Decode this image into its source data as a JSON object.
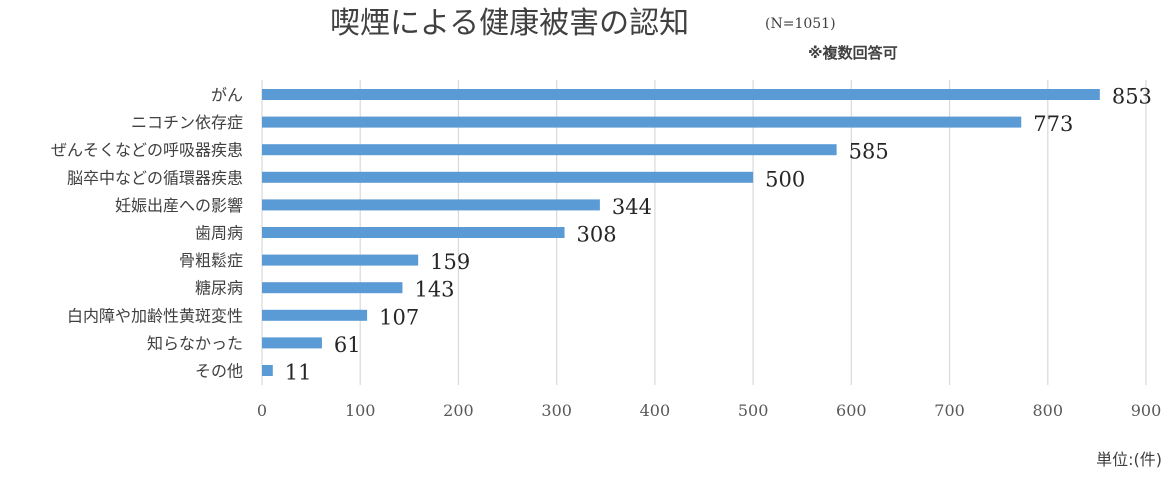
{
  "chart_data": {
    "type": "bar",
    "orientation": "horizontal",
    "title": "喫煙による健康被害の認知",
    "subtitle": "(N=1051)",
    "note": "※複数回答可",
    "unit_label": "単位:(件)",
    "categories": [
      "がん",
      "ニコチン依存症",
      "ぜんそくなどの呼吸器疾患",
      "脳卒中などの循環器疾患",
      "妊娠出産への影響",
      "歯周病",
      "骨粗鬆症",
      "糖尿病",
      "白内障や加齢性黄斑変性",
      "知らなかった",
      "その他"
    ],
    "values": [
      853,
      773,
      585,
      500,
      344,
      308,
      159,
      143,
      107,
      61,
      11
    ],
    "xlim": [
      0,
      900
    ],
    "xticks": [
      0,
      100,
      200,
      300,
      400,
      500,
      600,
      700,
      800,
      900
    ],
    "grid": true,
    "bar_color": "#5b9bd5",
    "grid_color": "#d9d9d9"
  }
}
